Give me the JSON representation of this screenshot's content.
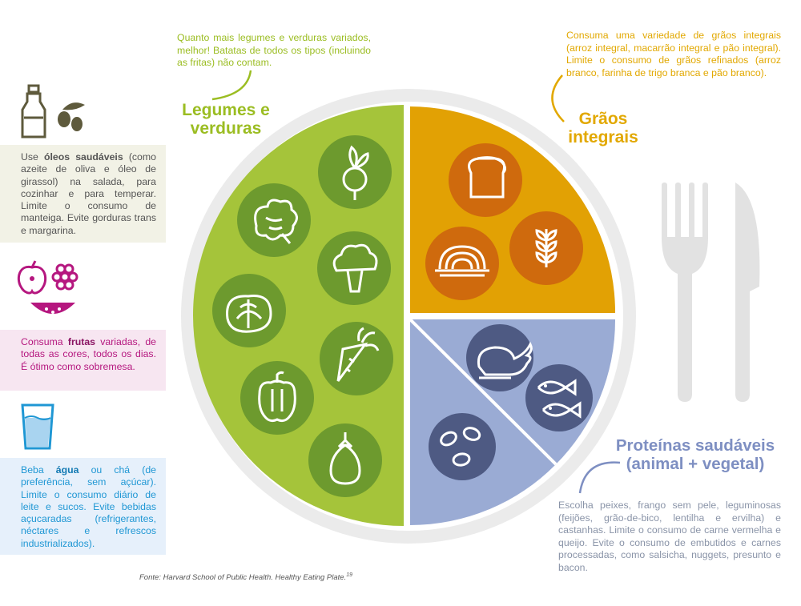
{
  "colors": {
    "vegetables": "#a5c43a",
    "vegetables_circle": "#6d9a2e",
    "grains": "#e2a104",
    "grains_circle": "#cf6a0d",
    "protein": "#9aabd4",
    "protein_circle": "#4e5a83",
    "plate_rim": "#ebebeb",
    "cutlery": "#e2e2e2"
  },
  "oils": {
    "icon": "olive-oil-bottle-icon",
    "text_pre": "Use ",
    "text_bold": "óleos saudáveis",
    "text_post": " (como azeite de oliva e óleo de girassol) na salada, para cozinhar e para temperar. Limite o consumo de manteiga. Evite gorduras trans e margarina."
  },
  "fruits": {
    "icon": "fruits-icon",
    "text_pre": "Consuma ",
    "text_bold": "frutas",
    "text_post": " variadas, de todas as cores, todos os dias. É ótimo como sobremesa."
  },
  "water": {
    "icon": "water-glass-icon",
    "text_pre": "Beba ",
    "text_bold": "água",
    "text_post": " ou chá (de preferência, sem açúcar). Limite o consumo diário de leite e sucos. Evite bebidas açucaradas (refrigerantes, néctares e refrescos industrializados)."
  },
  "vegetables": {
    "note": "Quanto mais legumes e verduras variados, melhor! Batatas de todos os tipos (incluindo as fritas) não contam.",
    "heading_line1": "Legumes e",
    "heading_line2": "verduras",
    "icons": [
      "radish-icon",
      "lettuce-icon",
      "broccoli-icon",
      "cabbage-icon",
      "carrot-icon",
      "bell-pepper-icon",
      "eggplant-icon"
    ]
  },
  "grains": {
    "note": "Consuma uma variedade de grãos integrais (arroz integral, macarrão integral e pão integral). Limite o consumo de grãos refinados (arroz branco, farinha de trigo branca e pão branco).",
    "heading_line1": "Grãos",
    "heading_line2": "integrais",
    "icons": [
      "bread-icon",
      "pasta-icon",
      "wheat-icon"
    ]
  },
  "protein": {
    "heading_line1": "Proteínas saudáveis",
    "heading_line2": "(animal + vegetal)",
    "note": "Escolha peixes, frango sem pele, leguminosas (feijões, grão-de-bico, lentilha e ervilha) e castanhas. Limite o consumo de carne vermelha e queijo. Evite o consumo de embutidos e carnes processadas, como salsicha, nuggets, presunto e bacon.",
    "icons": [
      "chicken-icon",
      "fish-icon",
      "beans-icon"
    ]
  },
  "source": {
    "text": "Fonte: Harvard School of Public Health. Healthy Eating Plate.",
    "superscript": "19"
  }
}
